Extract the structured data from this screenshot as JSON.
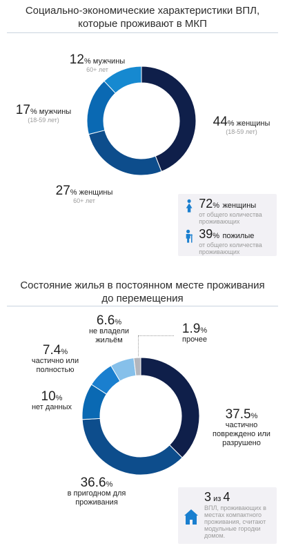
{
  "section1": {
    "title_line1": "Социально-экономические характеристики ВПЛ,",
    "title_line2": "которые проживают в МКП",
    "labels": [
      {
        "value": "12",
        "pct": "%",
        "text": "мужчины",
        "sub": "60+ лет"
      },
      {
        "value": "17",
        "pct": "%",
        "text": "мужчины",
        "sub": "(18-59 лет)"
      },
      {
        "value": "27",
        "pct": "%",
        "text": "женщины",
        "sub": "60+ лет"
      },
      {
        "value": "44",
        "pct": "%",
        "text": "женщины",
        "sub": "(18-59 лет)"
      }
    ],
    "info": [
      {
        "icon": "woman-icon",
        "value": "72",
        "pct": "%",
        "text": "женщины",
        "sub": "от общего количества проживающих"
      },
      {
        "icon": "elderly-icon",
        "value": "39",
        "pct": "%",
        "text": "пожилые",
        "sub": "от общего количества проживающих"
      }
    ]
  },
  "section2": {
    "title_line1": "Состояние жилья в постоянном месте проживания",
    "title_line2": "до перемещения",
    "labels": [
      {
        "value": "6.6",
        "pct": "%",
        "lines": [
          "не владели",
          "жильём"
        ]
      },
      {
        "value": "1.9",
        "pct": "%",
        "lines": [
          "прочее"
        ]
      },
      {
        "value": "7.4",
        "pct": "%",
        "lines": [
          "частично или",
          "полностью"
        ]
      },
      {
        "value": "10",
        "pct": "%",
        "lines": [
          "нет данных"
        ]
      },
      {
        "value": "37.5",
        "pct": "%",
        "lines": [
          "частично",
          "повреждено или",
          "разрушено"
        ]
      },
      {
        "value": "36.6",
        "pct": "%",
        "lines": [
          "в пригодном для",
          "проживания"
        ]
      }
    ],
    "info": {
      "icon": "house-icon",
      "value": "3",
      "mid": " из ",
      "value2": "4",
      "sub": "ВПЛ, проживающих в местах компактного проживания, считают модульные городки домом."
    }
  },
  "chart_data": [
    {
      "type": "pie",
      "categories": [
        "женщины (18-59 лет)",
        "женщины 60+ лет",
        "мужчины (18-59 лет)",
        "мужчины 60+ лет"
      ],
      "values": [
        44,
        27,
        17,
        12
      ],
      "colors": [
        "#0f1f4a",
        "#0d4d8c",
        "#0a69b3",
        "#1689d0"
      ]
    },
    {
      "type": "pie",
      "categories": [
        "частично повреждено или разрушено",
        "в пригодном для проживания",
        "нет данных",
        "частично или полностью",
        "не владели жильём",
        "прочее"
      ],
      "values": [
        37.5,
        36.6,
        10,
        7.4,
        6.6,
        1.9
      ],
      "colors": [
        "#0f1f4a",
        "#0d4d8c",
        "#0a69b3",
        "#1a7fcf",
        "#86c0ea",
        "#b3b6bd"
      ]
    }
  ]
}
